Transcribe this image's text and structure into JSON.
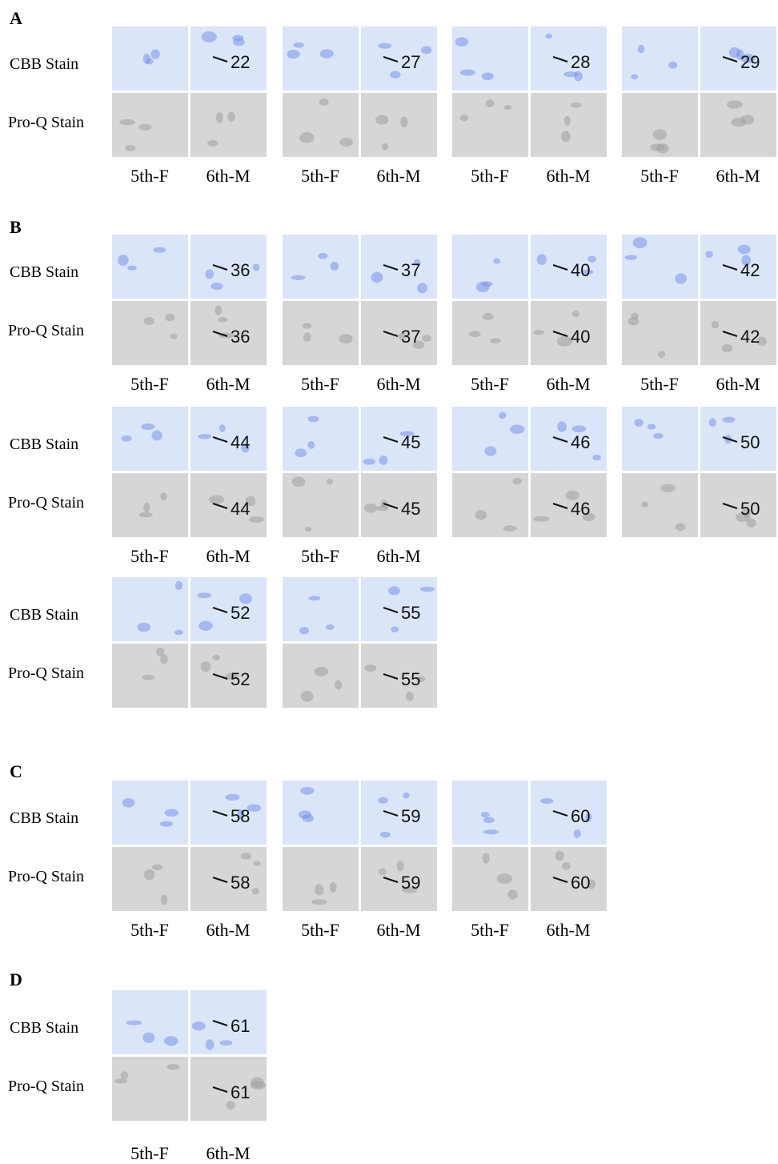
{
  "panels": [
    {
      "label": "A",
      "rows": [
        {
          "stains": [
            "CBB Stain",
            "Pro-Q Stain"
          ],
          "groups": [
            {
              "cbb_spot": "22",
              "lanes": [
                "5th-F",
                "6th-M"
              ]
            },
            {
              "cbb_spot": "27",
              "lanes": [
                "5th-F",
                "6th-M"
              ]
            },
            {
              "cbb_spot": "28",
              "lanes": [
                "5th-F",
                "6th-M"
              ]
            },
            {
              "cbb_spot": "29",
              "lanes": [
                "5th-F",
                "6th-M"
              ]
            }
          ]
        }
      ]
    },
    {
      "label": "B",
      "rows": [
        {
          "stains": [
            "CBB Stain",
            "Pro-Q Stain"
          ],
          "groups": [
            {
              "cbb_spot": "36",
              "proq_spot": "36",
              "lanes": [
                "5th-F",
                "6th-M"
              ]
            },
            {
              "cbb_spot": "37",
              "proq_spot": "37",
              "lanes": [
                "5th-F",
                "6th-M"
              ]
            },
            {
              "cbb_spot": "40",
              "proq_spot": "40",
              "lanes": [
                "5th-F",
                "6th-M"
              ]
            },
            {
              "cbb_spot": "42",
              "proq_spot": "42",
              "lanes": [
                "5th-F",
                "6th-M"
              ]
            }
          ]
        },
        {
          "stains": [
            "CBB Stain",
            "Pro-Q Stain"
          ],
          "groups": [
            {
              "cbb_spot": "44",
              "proq_spot": "44",
              "lanes": [
                "5th-F",
                "6th-M"
              ]
            },
            {
              "cbb_spot": "45",
              "proq_spot": "45",
              "lanes": [
                "5th-F",
                "6th-M"
              ]
            },
            {
              "cbb_spot": "46",
              "proq_spot": "46"
            },
            {
              "cbb_spot": "50",
              "proq_spot": "50"
            }
          ]
        },
        {
          "stains": [
            "CBB Stain",
            "Pro-Q Stain"
          ],
          "groups": [
            {
              "cbb_spot": "52",
              "proq_spot": "52"
            },
            {
              "cbb_spot": "55",
              "proq_spot": "55"
            }
          ]
        }
      ]
    },
    {
      "label": "C",
      "rows": [
        {
          "stains": [
            "CBB Stain",
            "Pro-Q Stain"
          ],
          "groups": [
            {
              "cbb_spot": "58",
              "proq_spot": "58",
              "lanes": [
                "5th-F",
                "6th-M"
              ]
            },
            {
              "cbb_spot": "59",
              "proq_spot": "59",
              "lanes": [
                "5th-F",
                "6th-M"
              ]
            },
            {
              "cbb_spot": "60",
              "proq_spot": "60",
              "lanes": [
                "5th-F",
                "6th-M"
              ]
            }
          ]
        }
      ]
    },
    {
      "label": "D",
      "rows": [
        {
          "stains": [
            "CBB Stain",
            "Pro-Q Stain"
          ],
          "groups": [
            {
              "cbb_spot": "61",
              "proq_spot": "61",
              "lanes": [
                "5th-F",
                "6th-M"
              ]
            }
          ]
        }
      ]
    }
  ]
}
